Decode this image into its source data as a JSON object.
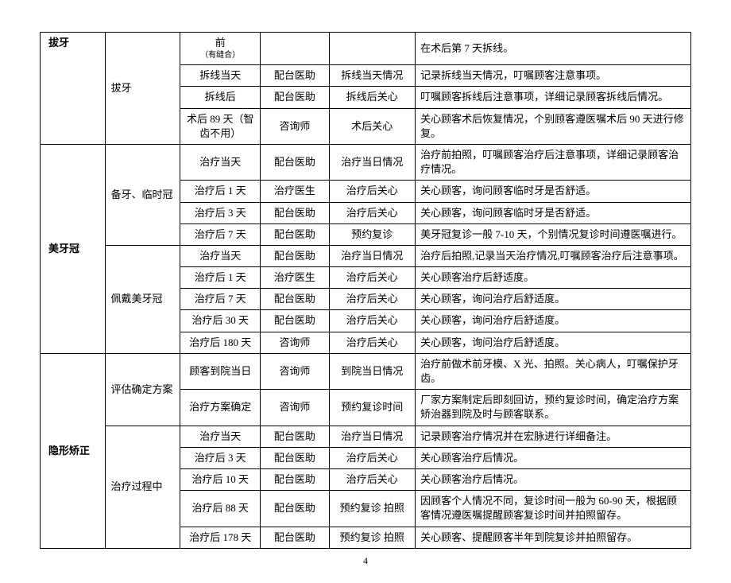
{
  "page_number": "4",
  "rows": [
    {
      "c0": "拔牙",
      "c0_rowspan": 4,
      "c0_class": "c0",
      "c1": "拔牙",
      "c1_rowspan": 4,
      "c2": "前",
      "c2_sub": "（有缝合）",
      "c3": "",
      "c4": "",
      "c5": "在术后第 7 天拆线。"
    },
    {
      "c2": "拆线当天",
      "c3": "配台医助",
      "c4": "拆线当天情况",
      "c5": "记录拆线当天情况，叮嘱顾客注意事项。"
    },
    {
      "c2": "拆线后",
      "c3": "配台医助",
      "c4": "拆线后关心",
      "c5": "叮嘱顾客拆线后注意事项，详细记录顾客拆线后情况。"
    },
    {
      "c2": "术后 89 天（智齿不用）",
      "c3": "咨询师",
      "c4": "术后关心",
      "c5": "关心顾客术后恢复情况，个别顾客遵医嘱术后 90 天进行修复。"
    },
    {
      "c0": "美牙冠",
      "c0_rowspan": 9,
      "c0_class": "c0 mid",
      "c1": "备牙、临时冠",
      "c1_rowspan": 4,
      "c2": "治疗当天",
      "c3": "配台医助",
      "c4": "治疗当日情况",
      "c5": "治疗前拍照，叮嘱顾客治疗后注意事项，详细记录顾客治疗情况。"
    },
    {
      "c2": "治疗后 1 天",
      "c3": "治疗医生",
      "c4": "治疗后关心",
      "c5": "关心顾客，询问顾客临时牙是否舒适。"
    },
    {
      "c2": "治疗后 3 天",
      "c3": "配台医助",
      "c4": "治疗后关心",
      "c5": "关心顾客，询问顾客临时牙是否舒适。"
    },
    {
      "c2": "治疗后 7 天",
      "c3": "配台医助",
      "c4": "预约复诊",
      "c5": "美牙冠复诊一般 7-10 天，个别情况复诊时间遵医嘱进行。"
    },
    {
      "c1": "佩戴美牙冠",
      "c1_rowspan": 5,
      "c2": "治疗当天",
      "c3": "配台医助",
      "c4": "治疗当日情况",
      "c5": "治疗后拍照,记录当天治疗情况,叮嘱顾客治疗后注意事项。"
    },
    {
      "c2": "治疗后 1 天",
      "c3": "治疗医生",
      "c4": "治疗后关心",
      "c5": "关心顾客治疗后舒适度。"
    },
    {
      "c2": "治疗后 7 天",
      "c3": "配台医助",
      "c4": "治疗后关心",
      "c5": "关心顾客，询问治疗后舒适度。"
    },
    {
      "c2": "治疗后 30 天",
      "c3": "配台医助",
      "c4": "治疗后关心",
      "c5": "关心顾客，询问治疗后舒适度。"
    },
    {
      "c2": "治疗后 180 天",
      "c3": "咨询师",
      "c4": "治疗后关心",
      "c5": "关心顾客，询问治疗后舒适度。"
    },
    {
      "c0": "隐形矫正",
      "c0_rowspan": 7,
      "c0_class": "c0 mid",
      "c1": "评估确定方案",
      "c1_rowspan": 2,
      "c2": "顾客到院当日",
      "c3": "咨询师",
      "c4": "到院当日情况",
      "c5": "治疗前做术前牙模、X 光、拍照。关心病人，叮嘱保护牙齿。"
    },
    {
      "c2": "治疗方案确定",
      "c3": "咨询师",
      "c4": "预约复诊时间",
      "c5": "厂家方案制定后即刻回访，预约复诊时间，确定治疗方案矫治器到院及时与顾客联系。"
    },
    {
      "c1": "治疗过程中",
      "c1_rowspan": 5,
      "c2": "治疗当天",
      "c3": "配台医助",
      "c4": "治疗当日情况",
      "c5": "记录顾客治疗情况并在宏脉进行详细备注。"
    },
    {
      "c2": "治疗后 3 天",
      "c3": "配台医助",
      "c4": "治疗后关心",
      "c5": "关心顾客治疗后情况。"
    },
    {
      "c2": "治疗后 10 天",
      "c3": "配台医助",
      "c4": "治疗后关心",
      "c5": "关心顾客治疗后情况。"
    },
    {
      "c2": "治疗后 88 天",
      "c3": "配台医助",
      "c4": "预约复诊 拍照",
      "c5": "因顾客个人情况不同，复诊时间一般为 60-90 天，根据顾客情况遵医嘱提醒顾客复诊时间并拍照留存。"
    },
    {
      "c2": "治疗后 178 天",
      "c3": "配台医助",
      "c4": "预约复诊 拍照",
      "c5": "关心顾客、提醒顾客半年到院复诊并拍照留存。"
    }
  ]
}
